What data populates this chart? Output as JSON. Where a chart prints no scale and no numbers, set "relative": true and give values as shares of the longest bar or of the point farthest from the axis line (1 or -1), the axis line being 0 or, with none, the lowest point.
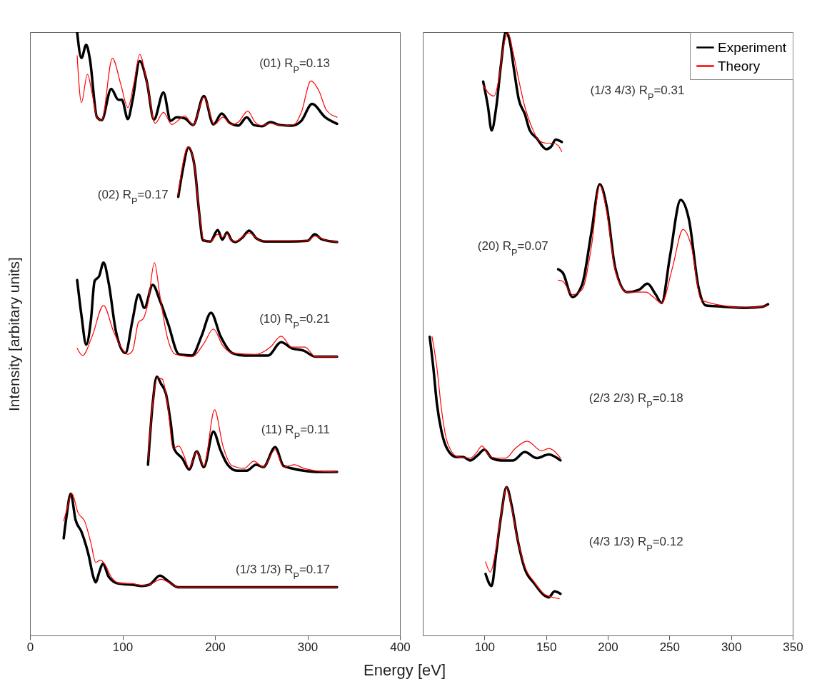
{
  "chart_data": [
    {
      "type": "line",
      "relative": true,
      "xlabel": "Energy [eV]",
      "ylabel": "Intensity [arbitary units]",
      "xlim": [
        0,
        400
      ],
      "xticks": [
        0,
        100,
        200,
        300,
        400
      ],
      "series": [
        {
          "color": "#000000",
          "x": [
            51.0,
            55.6,
            60.8,
            64.6,
            72.4,
            77.5,
            87.8,
            95.5,
            99.3,
            105.8,
            110.9,
            118.6,
            126.3,
            134.0,
            144.3,
            152.0,
            158.4,
            167.4,
            176.4,
            188.0,
            198.3,
            207.3,
            216.3,
            225.3,
            234.3,
            242.0,
            251.0,
            260.0,
            270.2,
            283.1,
            293.4,
            305.0,
            319.1,
            332.0
          ],
          "values": [
            1.0,
            0.957,
            0.979,
            0.957,
            0.859,
            0.854,
            0.906,
            0.888,
            0.888,
            0.856,
            0.887,
            0.952,
            0.918,
            0.855,
            0.9,
            0.853,
            0.859,
            0.857,
            0.846,
            0.894,
            0.847,
            0.865,
            0.849,
            0.845,
            0.859,
            0.846,
            0.844,
            0.851,
            0.846,
            0.845,
            0.853,
            0.881,
            0.859,
            0.848
          ]
        },
        {
          "color": "#ff0000",
          "x": [
            51.0,
            55.6,
            62.1,
            67.2,
            72.4,
            77.5,
            89.1,
            98.1,
            105.8,
            112.2,
            118.6,
            126.3,
            135.3,
            144.3,
            153.3,
            167.4,
            176.4,
            188.0,
            199.6,
            208.6,
            217.6,
            225.3,
            235.5,
            243.3,
            251.0,
            260.0,
            272.8,
            285.7,
            293.4,
            303.7,
            312.6,
            320.4,
            332.0
          ],
          "values": [
            0.961,
            0.883,
            0.93,
            0.898,
            0.859,
            0.854,
            0.957,
            0.914,
            0.875,
            0.914,
            0.963,
            0.918,
            0.849,
            0.867,
            0.847,
            0.861,
            0.846,
            0.892,
            0.847,
            0.859,
            0.847,
            0.851,
            0.869,
            0.851,
            0.845,
            0.849,
            0.845,
            0.847,
            0.867,
            0.919,
            0.902,
            0.871,
            0.859
          ]
        },
        {
          "color": "#000000",
          "x": [
            160.3,
            165,
            171.3,
            177.7,
            182.9,
            187,
            195,
            203,
            208,
            213,
            218,
            222,
            230,
            237,
            245,
            255,
            280,
            300,
            308,
            315,
            332
          ],
          "values": [
            0.727,
            0.77,
            0.809,
            0.78,
            0.701,
            0.655,
            0.653,
            0.672,
            0.656,
            0.668,
            0.655,
            0.652,
            0.66,
            0.671,
            0.658,
            0.653,
            0.653,
            0.654,
            0.665,
            0.657,
            0.652
          ]
        },
        {
          "color": "#ff0000",
          "x": [
            160,
            171.3,
            177.7,
            183,
            188,
            195,
            203,
            208,
            213,
            218,
            222,
            237,
            250,
            300,
            308,
            320,
            332
          ],
          "values": [
            0.73,
            0.81,
            0.78,
            0.7,
            0.655,
            0.653,
            0.665,
            0.66,
            0.666,
            0.655,
            0.653,
            0.667,
            0.654,
            0.654,
            0.662,
            0.655,
            0.652
          ]
        },
        {
          "color": "#000000",
          "x": [
            51.0,
            55.6,
            60.8,
            65.9,
            69.8,
            74.9,
            79.5,
            85.2,
            92.9,
            103.2,
            110.9,
            117.3,
            123.7,
            132.7,
            140.5,
            149.5,
            161.0,
            175.2,
            185.4,
            195.7,
            206.0,
            218.8,
            231.7,
            257.4,
            271.5,
            283.1,
            296.0,
            308.8,
            332.0
          ],
          "values": [
            0.589,
            0.531,
            0.482,
            0.523,
            0.587,
            0.596,
            0.618,
            0.583,
            0.504,
            0.468,
            0.523,
            0.565,
            0.543,
            0.581,
            0.555,
            0.516,
            0.466,
            0.464,
            0.496,
            0.535,
            0.496,
            0.468,
            0.464,
            0.464,
            0.486,
            0.476,
            0.472,
            0.462,
            0.462
          ]
        },
        {
          "color": "#ff0000",
          "x": [
            51.0,
            56.9,
            67.2,
            79.5,
            90.3,
            99.3,
            105.8,
            110.9,
            117.3,
            122.5,
            127.6,
            134.5,
            140.5,
            148.2,
            157.2,
            175.2,
            188.0,
            198.3,
            208.6,
            218.8,
            244.5,
            260.0,
            271.5,
            283.1,
            297.2,
            308.8,
            332.0
          ],
          "values": [
            0.476,
            0.464,
            0.496,
            0.547,
            0.504,
            0.476,
            0.466,
            0.472,
            0.519,
            0.525,
            0.551,
            0.618,
            0.563,
            0.496,
            0.466,
            0.462,
            0.484,
            0.508,
            0.48,
            0.468,
            0.466,
            0.478,
            0.496,
            0.478,
            0.478,
            0.462,
            0.462
          ]
        },
        {
          "color": "#000000",
          "x": [
            127.6,
            132.7,
            137.1,
            141.7,
            146.9,
            152.0,
            155.9,
            164.9,
            172.1,
            180.3,
            188.0,
            198.3,
            206.0,
            213.7,
            224.0,
            234.3,
            244.5,
            252.3,
            265.1,
            274.1,
            283.1,
            296.0,
            308.8,
            332.0
          ],
          "values": [
            0.283,
            0.385,
            0.429,
            0.417,
            0.401,
            0.354,
            0.309,
            0.293,
            0.275,
            0.305,
            0.279,
            0.338,
            0.307,
            0.283,
            0.273,
            0.273,
            0.283,
            0.279,
            0.312,
            0.281,
            0.277,
            0.273,
            0.271,
            0.271
          ]
        },
        {
          "color": "#ff0000",
          "x": [
            127.6,
            132.7,
            137.9,
            143.0,
            149.5,
            154.6,
            161.0,
            166.2,
            172.1,
            180.3,
            188.0,
            199.6,
            208.6,
            218.8,
            231.7,
            242.0,
            252.3,
            265.1,
            274.1,
            285.7,
            296.0,
            308.8,
            332.0
          ],
          "values": [
            0.291,
            0.385,
            0.427,
            0.425,
            0.374,
            0.31,
            0.314,
            0.299,
            0.277,
            0.305,
            0.281,
            0.374,
            0.314,
            0.281,
            0.277,
            0.289,
            0.279,
            0.308,
            0.279,
            0.283,
            0.277,
            0.273,
            0.271
          ]
        },
        {
          "color": "#000000",
          "x": [
            36.4,
            39.0,
            44.1,
            49.2,
            55.6,
            63.4,
            68.5,
            71.1,
            74.9,
            78.8,
            85.2,
            95.5,
            110.9,
            121.2,
            128.9,
            140.5,
            149.5,
            159.7,
            180.3,
            332.0
          ],
          "values": [
            0.161,
            0.192,
            0.235,
            0.192,
            0.172,
            0.133,
            0.097,
            0.088,
            0.105,
            0.119,
            0.097,
            0.086,
            0.084,
            0.082,
            0.084,
            0.099,
            0.09,
            0.08,
            0.08,
            0.08
          ]
        },
        {
          "color": "#ff0000",
          "x": [
            36.4,
            39.0,
            45.4,
            51.8,
            59.5,
            65.9,
            71.1,
            76.2,
            81.3,
            87.8,
            98.1,
            110.9,
            121.2,
            128.9,
            141.7,
            152.0,
            159.7,
            332.0
          ],
          "values": [
            0.19,
            0.204,
            0.235,
            0.204,
            0.188,
            0.153,
            0.121,
            0.125,
            0.117,
            0.097,
            0.086,
            0.086,
            0.082,
            0.084,
            0.093,
            0.086,
            0.08,
            0.08
          ]
        }
      ],
      "annotations": [
        "(01) R$_{P}$=0.13",
        "(02) R$_{P}$=0.17",
        "(10) R$_{P}$=0.21",
        "(11) R$_{P}$=0.11",
        "(1/3 1/3) R$_{P}$=0.17"
      ]
    },
    {
      "type": "line",
      "relative": true,
      "xlim": [
        50,
        350
      ],
      "xticks": [
        100,
        150,
        200,
        250,
        300,
        350
      ],
      "legend": "top right",
      "series": [
        {
          "name": "Experiment",
          "color": "#000000",
          "x": [
            99.0,
            102.9,
            105.8,
            109.6,
            113.5,
            117.3,
            120.2,
            124.1,
            127.9,
            132.8,
            136.6,
            142.4,
            150.1,
            154.0,
            157.8,
            162.7
          ],
          "values": [
            0.918,
            0.876,
            0.837,
            0.876,
            0.948,
            1.0,
            0.988,
            0.936,
            0.888,
            0.864,
            0.838,
            0.824,
            0.806,
            0.81,
            0.822,
            0.818
          ]
        },
        {
          "name": "Theory",
          "color": "#ff0000",
          "x": [
            99.0,
            102.9,
            107.7,
            111.5,
            115.4,
            119.3,
            123.1,
            127.9,
            132.8,
            138.5,
            144.3,
            150.1,
            155.9,
            159.8,
            162.7
          ],
          "values": [
            0.912,
            0.9,
            0.894,
            0.92,
            0.976,
            0.998,
            0.968,
            0.92,
            0.876,
            0.842,
            0.82,
            0.816,
            0.816,
            0.812,
            0.802
          ]
        },
        {
          "color": "#000000",
          "x": [
            159.8,
            163.6,
            171.3,
            179.1,
            186.8,
            193.5,
            199.3,
            206.1,
            215.7,
            225.4,
            232.1,
            238.9,
            243.7,
            250.5,
            259.1,
            265.9,
            273.6,
            279.4,
            292.9,
            312.2,
            325.7,
            330.0
          ],
          "values": [
            0.607,
            0.601,
            0.561,
            0.581,
            0.669,
            0.748,
            0.709,
            0.609,
            0.569,
            0.573,
            0.583,
            0.565,
            0.551,
            0.629,
            0.722,
            0.689,
            0.577,
            0.547,
            0.545,
            0.543,
            0.545,
            0.549
          ]
        },
        {
          "color": "#ff0000",
          "x": [
            159.8,
            163.6,
            171.3,
            179.1,
            186.8,
            193.5,
            199.3,
            206.1,
            215.7,
            231.1,
            236.9,
            243.7,
            252.4,
            261.0,
            267.8,
            275.5,
            283.2,
            292.9,
            312.2,
            330.0
          ],
          "values": [
            0.589,
            0.587,
            0.565,
            0.573,
            0.645,
            0.746,
            0.701,
            0.605,
            0.569,
            0.569,
            0.561,
            0.551,
            0.609,
            0.673,
            0.645,
            0.557,
            0.551,
            0.547,
            0.543,
            0.547
          ]
        },
        {
          "color": "#000000",
          "x": [
            55.6,
            58.5,
            61.4,
            65.2,
            70.1,
            76.8,
            82.6,
            88.4,
            94.2,
            100.0,
            105.8,
            113.5,
            123.1,
            132.8,
            142.4,
            152.1,
            161.7
          ],
          "values": [
            0.495,
            0.445,
            0.385,
            0.338,
            0.308,
            0.296,
            0.296,
            0.29,
            0.298,
            0.308,
            0.294,
            0.29,
            0.29,
            0.304,
            0.294,
            0.3,
            0.29
          ]
        },
        {
          "color": "#ff0000",
          "x": [
            57.5,
            61.4,
            65.2,
            69.1,
            73.0,
            78.7,
            88.4,
            93.2,
            98.0,
            103.8,
            109.6,
            117.3,
            125.0,
            134.7,
            146.3,
            152.1,
            161.7
          ],
          "values": [
            0.495,
            0.445,
            0.374,
            0.326,
            0.306,
            0.296,
            0.294,
            0.302,
            0.314,
            0.298,
            0.294,
            0.294,
            0.31,
            0.322,
            0.306,
            0.31,
            0.294
          ]
        },
        {
          "color": "#000000",
          "x": [
            100.9,
            105.8,
            109.6,
            113.5,
            117.9,
            122.2,
            127.0,
            132.8,
            140.5,
            148.2,
            152.1,
            156.9,
            161.7
          ],
          "values": [
            0.102,
            0.082,
            0.138,
            0.198,
            0.246,
            0.214,
            0.158,
            0.11,
            0.086,
            0.067,
            0.063,
            0.073,
            0.069
          ]
        },
        {
          "color": "#ff0000",
          "x": [
            100.9,
            104.8,
            108.6,
            113.5,
            117.9,
            122.2,
            127.0,
            132.8,
            140.5,
            148.2,
            155.9,
            160.7
          ],
          "values": [
            0.122,
            0.105,
            0.134,
            0.198,
            0.246,
            0.21,
            0.158,
            0.114,
            0.088,
            0.069,
            0.063,
            0.061
          ]
        }
      ],
      "annotations": [
        "(1/3 4/3) R$_{P}$=0.31",
        "(20) R$_{P}$=0.07",
        "(2/3 2/3) R$_{P}$=0.18",
        "(4/3 1/3) R$_{P}$=0.12"
      ]
    }
  ]
}
